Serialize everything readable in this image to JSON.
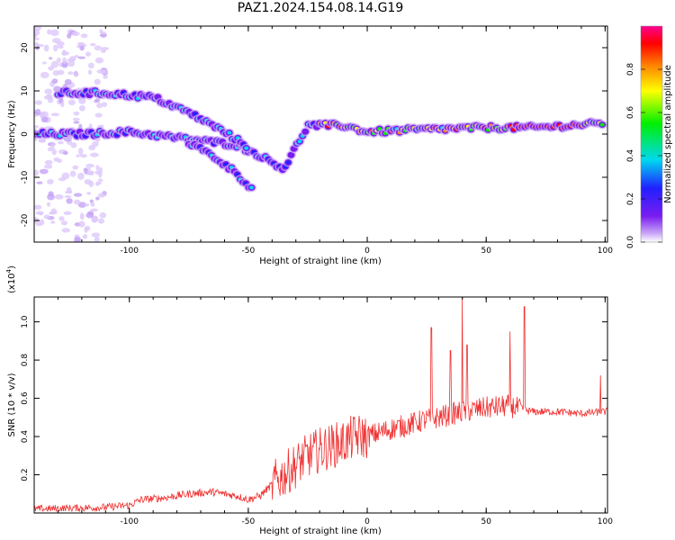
{
  "figure": {
    "title": "PAZ1.2024.154.08.14.G19"
  },
  "chart_data": [
    {
      "type": "heatmap",
      "title": "PAZ1.2024.154.08.14.G19",
      "xlabel": "Height of straight line (km)",
      "ylabel": "Frequency (Hz)",
      "xlim": [
        -140,
        101
      ],
      "ylim": [
        -25,
        25
      ],
      "xticks": [
        -100,
        -50,
        0,
        50,
        100
      ],
      "yticks": [
        -20,
        -10,
        0,
        10,
        20
      ],
      "colorbar": {
        "label": "Normalized spectral amplitude",
        "range": [
          0,
          1
        ],
        "ticks": [
          0.0,
          0.2,
          0.4,
          0.6,
          0.8
        ],
        "tick_labels": [
          "0.0",
          "0.2",
          "0.4",
          "0.6",
          "0.8"
        ],
        "colormap": [
          "#ffffff",
          "#c9a7f7",
          "#7a1cf0",
          "#2020ff",
          "#00d8f0",
          "#00f000",
          "#ffff00",
          "#ff8000",
          "#ff0000",
          "#ff0090"
        ]
      },
      "features": [
        {
          "name": "main band",
          "points": [
            [
              -140,
              0
            ],
            [
              -120,
              0
            ],
            [
              -100,
              0.5
            ],
            [
              -85,
              -0.5
            ],
            [
              -70,
              -1.5
            ],
            [
              -55,
              -2.5
            ],
            [
              -45,
              -5
            ],
            [
              -35,
              -8
            ],
            [
              -25,
              2
            ],
            [
              -10,
              2
            ],
            [
              0,
              0.5
            ],
            [
              20,
              1
            ],
            [
              50,
              1.5
            ],
            [
              70,
              1.5
            ],
            [
              100,
              2.5
            ]
          ]
        },
        {
          "name": "upper branch",
          "points": [
            [
              -130,
              9.5
            ],
            [
              -110,
              9.5
            ],
            [
              -90,
              8.5
            ],
            [
              -75,
              5
            ],
            [
              -60,
              0.5
            ],
            [
              -50,
              -3
            ]
          ]
        },
        {
          "name": "lower branch",
          "points": [
            [
              -75,
              -2
            ],
            [
              -65,
              -5
            ],
            [
              -55,
              -9
            ],
            [
              -48,
              -13
            ]
          ]
        }
      ]
    },
    {
      "type": "line",
      "title": "",
      "xlabel": "Height of straight line (km)",
      "ylabel": "SNR (10 * v/v)",
      "yscale_label": "(x10",
      "yscale_exp": "4",
      "yscale_close": ")",
      "xlim": [
        -140,
        101
      ],
      "ylim": [
        0,
        1.13
      ],
      "xticks": [
        -100,
        -50,
        0,
        50,
        100
      ],
      "yticks": [
        0.2,
        0.4,
        0.6,
        0.8,
        1.0
      ],
      "line_color": "#f03030",
      "series": [
        {
          "x": [
            -140,
            -110,
            -100,
            -95,
            -85,
            -75,
            -65,
            -55,
            -50,
            -45,
            -40,
            -35,
            -30,
            -25,
            -20,
            -15,
            -10,
            -5,
            0,
            10,
            20,
            25,
            30,
            40,
            50,
            60,
            65,
            70,
            80,
            90,
            100
          ],
          "values": [
            0.02,
            0.03,
            0.04,
            0.07,
            0.08,
            0.1,
            0.11,
            0.09,
            0.07,
            0.09,
            0.15,
            0.2,
            0.25,
            0.3,
            0.33,
            0.35,
            0.37,
            0.4,
            0.4,
            0.44,
            0.47,
            0.49,
            0.5,
            0.53,
            0.55,
            0.56,
            0.54,
            0.53,
            0.53,
            0.52,
            0.53
          ]
        }
      ],
      "spikes": [
        [
          27,
          0.97
        ],
        [
          35,
          0.85
        ],
        [
          40,
          1.13
        ],
        [
          42,
          0.88
        ],
        [
          60,
          0.95
        ],
        [
          66,
          1.08
        ],
        [
          98,
          0.72
        ]
      ]
    }
  ]
}
